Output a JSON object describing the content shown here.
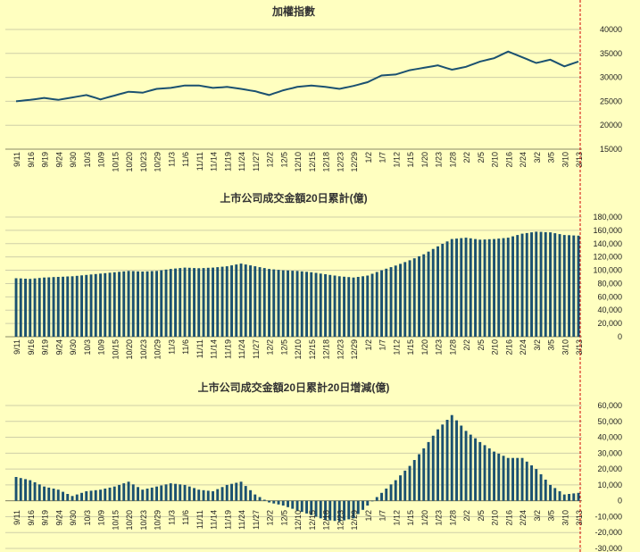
{
  "colors": {
    "background": "#FFFFC0",
    "series": "#1B5170",
    "grid": "#cfcfa8",
    "redline": "#d00000"
  },
  "chart_data": [
    {
      "type": "line",
      "title": "加權指數",
      "xlabel": "",
      "ylabel": "",
      "ylim": [
        15000,
        40000
      ],
      "yticks": [
        "40000",
        "35000",
        "30000",
        "25000",
        "20000",
        "15000"
      ],
      "categories": [
        "9/11",
        "9/16",
        "9/19",
        "9/24",
        "9/30",
        "10/3",
        "10/9",
        "10/15",
        "10/20",
        "10/23",
        "10/29",
        "11/3",
        "11/6",
        "11/11",
        "11/14",
        "11/19",
        "11/24",
        "11/27",
        "12/2",
        "12/5",
        "12/10",
        "12/15",
        "12/18",
        "12/23",
        "12/29",
        "1/2",
        "1/7",
        "1/12",
        "1/15",
        "1/20",
        "1/23",
        "1/28",
        "2/2",
        "2/5",
        "2/10",
        "2/16",
        "2/24",
        "3/2",
        "3/5",
        "3/10",
        "3/13"
      ],
      "values": [
        25000,
        25300,
        25700,
        25300,
        25800,
        26300,
        25400,
        26200,
        27000,
        26800,
        27600,
        27800,
        28300,
        28300,
        27800,
        28000,
        27600,
        27100,
        26300,
        27300,
        28000,
        28300,
        28000,
        27600,
        28200,
        29000,
        30400,
        30600,
        31500,
        32000,
        32500,
        31600,
        32200,
        33300,
        34000,
        35400,
        34200,
        33000,
        33700,
        32300,
        33300
      ]
    },
    {
      "type": "bar",
      "title": "上市公司成交金額20日累計(億)",
      "xlabel": "",
      "ylabel": "",
      "ylim": [
        0,
        180000
      ],
      "yticks": [
        "180,000",
        "160,000",
        "140,000",
        "120,000",
        "100,000",
        "80,000",
        "60,000",
        "40,000",
        "20,000",
        "0"
      ],
      "categories": [
        "9/11",
        "9/16",
        "9/19",
        "9/24",
        "9/30",
        "10/3",
        "10/9",
        "10/15",
        "10/20",
        "10/23",
        "10/29",
        "11/3",
        "11/6",
        "11/11",
        "11/14",
        "11/19",
        "11/24",
        "11/27",
        "12/2",
        "12/5",
        "12/10",
        "12/15",
        "12/18",
        "12/23",
        "12/29",
        "1/2",
        "1/7",
        "1/12",
        "1/15",
        "1/20",
        "1/23",
        "1/28",
        "2/2",
        "2/5",
        "2/10",
        "2/16",
        "2/24",
        "3/2",
        "3/5",
        "3/10",
        "3/13"
      ],
      "values": [
        88000,
        87000,
        89000,
        90000,
        91000,
        93000,
        95000,
        97000,
        99000,
        98000,
        99000,
        102000,
        104000,
        103000,
        104000,
        106000,
        110000,
        106000,
        102000,
        100000,
        99000,
        97000,
        94000,
        91000,
        89000,
        92000,
        100000,
        107000,
        115000,
        124000,
        136000,
        147000,
        149000,
        146000,
        147000,
        149000,
        155000,
        158000,
        157000,
        153000,
        152000
      ]
    },
    {
      "type": "bar",
      "title": "上市公司成交金額20日累計20日增減(億)",
      "xlabel": "",
      "ylabel": "",
      "ylim": [
        -30000,
        60000
      ],
      "yticks": [
        "60,000",
        "50,000",
        "40,000",
        "30,000",
        "20,000",
        "10,000",
        "0",
        "-10,000",
        "-20,000",
        "-30,000"
      ],
      "categories": [
        "9/11",
        "9/16",
        "9/19",
        "9/24",
        "9/30",
        "10/3",
        "10/9",
        "10/15",
        "10/20",
        "10/23",
        "10/29",
        "11/3",
        "11/6",
        "11/11",
        "11/14",
        "11/19",
        "11/24",
        "11/27",
        "12/2",
        "12/5",
        "12/10",
        "12/15",
        "12/18",
        "12/23",
        "12/29",
        "1/2",
        "1/7",
        "1/12",
        "1/15",
        "1/20",
        "1/23",
        "1/28",
        "2/2",
        "2/5",
        "2/10",
        "2/16",
        "2/24",
        "3/2",
        "3/5",
        "3/10",
        "3/13"
      ],
      "values": [
        15000,
        13000,
        9000,
        7000,
        3000,
        6000,
        7000,
        9000,
        12000,
        7000,
        9000,
        11000,
        10000,
        7000,
        6000,
        10000,
        12000,
        4000,
        -1000,
        -3000,
        -6000,
        -9000,
        -12000,
        -13000,
        -11000,
        -3000,
        5000,
        13000,
        22000,
        33000,
        45000,
        54000,
        44000,
        37000,
        31000,
        27000,
        27000,
        20000,
        10000,
        4000,
        5000
      ]
    }
  ]
}
